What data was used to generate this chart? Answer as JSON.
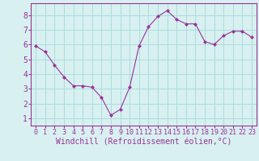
{
  "x": [
    0,
    1,
    2,
    3,
    4,
    5,
    6,
    7,
    8,
    9,
    10,
    11,
    12,
    13,
    14,
    15,
    16,
    17,
    18,
    19,
    20,
    21,
    22,
    23
  ],
  "y": [
    5.9,
    5.5,
    4.6,
    3.8,
    3.2,
    3.2,
    3.1,
    2.4,
    1.2,
    1.6,
    3.1,
    5.9,
    7.2,
    7.9,
    8.3,
    7.7,
    7.4,
    7.4,
    6.2,
    6.0,
    6.6,
    6.9,
    6.9,
    6.5
  ],
  "line_color": "#993399",
  "marker": "D",
  "marker_size": 2.0,
  "background_color": "#d8f0f0",
  "grid_color": "#aadddd",
  "xlabel": "Windchill (Refroidissement éolien,°C)",
  "xlabel_fontsize": 7,
  "xtick_labels": [
    "0",
    "1",
    "2",
    "3",
    "4",
    "5",
    "6",
    "7",
    "8",
    "9",
    "10",
    "11",
    "12",
    "13",
    "14",
    "15",
    "16",
    "17",
    "18",
    "19",
    "20",
    "21",
    "22",
    "23"
  ],
  "ytick_vals": [
    1,
    2,
    3,
    4,
    5,
    6,
    7,
    8
  ],
  "ylim": [
    0.5,
    8.8
  ],
  "xlim": [
    -0.5,
    23.5
  ],
  "spine_color": "#993399",
  "tick_color": "#993399",
  "label_color": "#993399",
  "tick_fontsize": 6,
  "ytick_fontsize": 7
}
